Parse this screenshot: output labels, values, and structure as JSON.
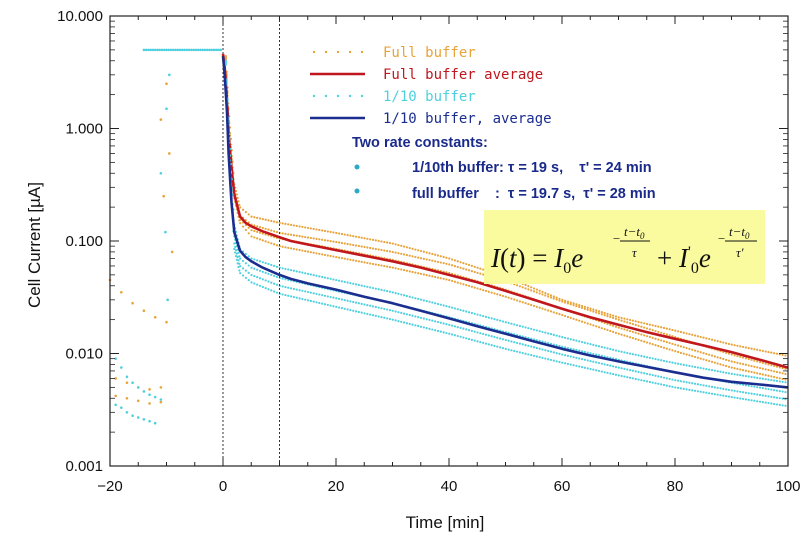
{
  "chart_data": {
    "type": "line",
    "title": "",
    "xlabel": "Time [min]",
    "ylabel": "Cell Current [µA]",
    "xlim": [
      -20,
      100
    ],
    "ylim": [
      0.001,
      10
    ],
    "yscale": "log",
    "x_ticks": [
      -20,
      0,
      20,
      40,
      60,
      80,
      100
    ],
    "x_tick_labels": [
      "−20",
      "0",
      "20",
      "40",
      "60",
      "80",
      "100"
    ],
    "y_ticks": [
      0.001,
      0.01,
      0.1,
      1,
      10
    ],
    "y_tick_labels": [
      "0.001",
      "0.010",
      "0.100",
      "1.000",
      "10.000"
    ],
    "vlines": [
      0,
      10
    ],
    "grid": false,
    "legend_position": "top-right",
    "series": [
      {
        "name": "Full buffer",
        "style": "dots",
        "color": "#e8a33a",
        "points": [
          [
            -20,
            0.045
          ],
          [
            -18,
            0.035
          ],
          [
            -16,
            0.028
          ],
          [
            -14,
            0.024
          ],
          [
            -12,
            0.021
          ],
          [
            -10,
            0.019
          ],
          [
            -19,
            0.006
          ],
          [
            -17,
            0.0055
          ],
          [
            -15,
            0.005
          ],
          [
            -13,
            0.0048
          ],
          [
            -11,
            0.005
          ],
          [
            -19,
            0.0042
          ],
          [
            -17,
            0.004
          ],
          [
            -15,
            0.0038
          ],
          [
            -13,
            0.0036
          ],
          [
            -11,
            0.0037
          ],
          [
            -10,
            2.5
          ],
          [
            -9.5,
            0.6
          ],
          [
            -11,
            1.2
          ],
          [
            -10.5,
            0.25
          ],
          [
            -9,
            0.08
          ]
        ],
        "curves": [
          [
            [
              0.5,
              4.4
            ],
            [
              1,
              1.5
            ],
            [
              2,
              0.32
            ],
            [
              3,
              0.2
            ],
            [
              5,
              0.165
            ],
            [
              10,
              0.145
            ],
            [
              20,
              0.118
            ],
            [
              30,
              0.095
            ],
            [
              40,
              0.07
            ],
            [
              50,
              0.048
            ],
            [
              60,
              0.03
            ],
            [
              70,
              0.021
            ],
            [
              80,
              0.016
            ],
            [
              90,
              0.012
            ],
            [
              100,
              0.0095
            ]
          ],
          [
            [
              0.5,
              4.2
            ],
            [
              1,
              1.3
            ],
            [
              2,
              0.26
            ],
            [
              3,
              0.155
            ],
            [
              5,
              0.125
            ],
            [
              10,
              0.105
            ],
            [
              20,
              0.085
            ],
            [
              30,
              0.068
            ],
            [
              40,
              0.052
            ],
            [
              50,
              0.037
            ],
            [
              60,
              0.025
            ],
            [
              70,
              0.017
            ],
            [
              80,
              0.012
            ],
            [
              90,
              0.0085
            ],
            [
              100,
              0.0065
            ]
          ],
          [
            [
              0.5,
              4.3
            ],
            [
              1,
              1.35
            ],
            [
              2,
              0.28
            ],
            [
              3,
              0.17
            ],
            [
              5,
              0.14
            ],
            [
              10,
              0.118
            ],
            [
              20,
              0.098
            ],
            [
              30,
              0.08
            ],
            [
              40,
              0.062
            ],
            [
              50,
              0.044
            ],
            [
              60,
              0.029
            ],
            [
              70,
              0.02
            ],
            [
              80,
              0.014
            ],
            [
              90,
              0.0098
            ],
            [
              100,
              0.0072
            ]
          ],
          [
            [
              0.5,
              4.1
            ],
            [
              1,
              1.2
            ],
            [
              2,
              0.24
            ],
            [
              3,
              0.145
            ],
            [
              5,
              0.11
            ],
            [
              10,
              0.09
            ],
            [
              20,
              0.072
            ],
            [
              30,
              0.058
            ],
            [
              40,
              0.045
            ],
            [
              50,
              0.032
            ],
            [
              60,
              0.022
            ],
            [
              70,
              0.015
            ],
            [
              80,
              0.0105
            ],
            [
              90,
              0.0075
            ],
            [
              100,
              0.0058
            ]
          ]
        ]
      },
      {
        "name": "Full buffer average",
        "style": "line",
        "color": "#c0161d",
        "x": [
          0,
          0.3,
          0.7,
          1,
          1.5,
          2,
          3,
          4,
          5,
          7,
          10,
          12,
          15,
          20,
          25,
          30,
          35,
          40,
          45,
          50,
          55,
          60,
          65,
          70,
          75,
          80,
          85,
          90,
          95,
          100
        ],
        "y": [
          4.6,
          3.5,
          1.8,
          0.9,
          0.45,
          0.26,
          0.165,
          0.145,
          0.135,
          0.122,
          0.108,
          0.1,
          0.093,
          0.083,
          0.074,
          0.066,
          0.058,
          0.05,
          0.043,
          0.036,
          0.03,
          0.025,
          0.021,
          0.018,
          0.0155,
          0.0135,
          0.0118,
          0.0103,
          0.0088,
          0.0075
        ]
      },
      {
        "name": "1/10 buffer",
        "style": "dots",
        "color": "#4fd0de",
        "points": [
          [
            -19,
            0.009
          ],
          [
            -18,
            0.0075
          ],
          [
            -17,
            0.0062
          ],
          [
            -16,
            0.0055
          ],
          [
            -15,
            0.005
          ],
          [
            -14,
            0.0046
          ],
          [
            -13,
            0.0043
          ],
          [
            -12,
            0.0041
          ],
          [
            -11,
            0.0039
          ],
          [
            -19,
            0.0035
          ],
          [
            -18,
            0.0033
          ],
          [
            -17,
            0.003
          ],
          [
            -16,
            0.0028
          ],
          [
            -15,
            0.0027
          ],
          [
            -14,
            0.0026
          ],
          [
            -13,
            0.0025
          ],
          [
            -12,
            0.0024
          ],
          [
            -10,
            1.5
          ],
          [
            -9.5,
            3.0
          ],
          [
            -11,
            0.4
          ],
          [
            -10.2,
            0.12
          ],
          [
            -9.8,
            0.03
          ]
        ],
        "flat": {
          "x": [
            -14,
            0
          ],
          "y": 5.0
        },
        "curves": [
          [
            [
              0.5,
              4.0
            ],
            [
              1,
              1.1
            ],
            [
              2,
              0.14
            ],
            [
              3,
              0.085
            ],
            [
              5,
              0.07
            ],
            [
              10,
              0.058
            ],
            [
              20,
              0.045
            ],
            [
              30,
              0.035
            ],
            [
              40,
              0.026
            ],
            [
              50,
              0.019
            ],
            [
              60,
              0.014
            ],
            [
              70,
              0.0105
            ],
            [
              80,
              0.0082
            ],
            [
              90,
              0.0066
            ],
            [
              100,
              0.0055
            ]
          ],
          [
            [
              0.5,
              3.8
            ],
            [
              1,
              1.0
            ],
            [
              2,
              0.11
            ],
            [
              3,
              0.07
            ],
            [
              5,
              0.058
            ],
            [
              10,
              0.047
            ],
            [
              20,
              0.036
            ],
            [
              30,
              0.028
            ],
            [
              40,
              0.021
            ],
            [
              50,
              0.0155
            ],
            [
              60,
              0.0115
            ],
            [
              70,
              0.0088
            ],
            [
              80,
              0.0068
            ],
            [
              90,
              0.0055
            ],
            [
              100,
              0.0045
            ]
          ],
          [
            [
              0.5,
              3.9
            ],
            [
              1,
              1.05
            ],
            [
              2,
              0.095
            ],
            [
              3,
              0.06
            ],
            [
              5,
              0.05
            ],
            [
              10,
              0.04
            ],
            [
              20,
              0.031
            ],
            [
              30,
              0.024
            ],
            [
              40,
              0.018
            ],
            [
              50,
              0.0132
            ],
            [
              60,
              0.0098
            ],
            [
              70,
              0.0075
            ],
            [
              80,
              0.0058
            ],
            [
              90,
              0.0047
            ],
            [
              100,
              0.0039
            ]
          ],
          [
            [
              0.5,
              3.7
            ],
            [
              1,
              0.95
            ],
            [
              2,
              0.085
            ],
            [
              3,
              0.052
            ],
            [
              5,
              0.043
            ],
            [
              10,
              0.034
            ],
            [
              20,
              0.026
            ],
            [
              30,
              0.02
            ],
            [
              40,
              0.015
            ],
            [
              50,
              0.011
            ],
            [
              60,
              0.0083
            ],
            [
              70,
              0.0064
            ],
            [
              80,
              0.005
            ],
            [
              90,
              0.0041
            ],
            [
              100,
              0.0034
            ]
          ]
        ]
      },
      {
        "name": "1/10 buffer, average",
        "style": "line",
        "color": "#1b2e8f",
        "x": [
          0,
          0.3,
          0.7,
          1,
          1.5,
          2,
          3,
          4,
          5,
          7,
          10,
          12,
          15,
          20,
          25,
          30,
          35,
          40,
          45,
          50,
          55,
          60,
          65,
          70,
          75,
          80,
          85,
          90,
          95,
          100
        ],
        "y": [
          4.4,
          3.0,
          1.4,
          0.6,
          0.22,
          0.12,
          0.082,
          0.072,
          0.066,
          0.058,
          0.05,
          0.046,
          0.042,
          0.037,
          0.032,
          0.028,
          0.024,
          0.0205,
          0.0175,
          0.015,
          0.0128,
          0.011,
          0.0096,
          0.0085,
          0.0076,
          0.0068,
          0.0061,
          0.0056,
          0.0053,
          0.005
        ]
      }
    ],
    "annotations": {
      "note_title": "Two rate constants:",
      "note_line1": "1/10th buffer: τ = 19 s,    τ' = 24 min",
      "note_line2": "full buffer    :  τ = 19.7 s,  τ' = 28 min",
      "formula": "I(t) = I0 e^(-(t-t0)/τ) + I'0 e^(-(t-t0)/τ')"
    }
  },
  "legend": [
    {
      "label": "Full buffer",
      "color": "#e8a33a",
      "kind": "dots"
    },
    {
      "label": "Full buffer average",
      "color": "#c0161d",
      "kind": "line"
    },
    {
      "label": "1/10 buffer",
      "color": "#4fd0de",
      "kind": "dots"
    },
    {
      "label": "1/10 buffer, average",
      "color": "#1b2e8f",
      "kind": "line"
    }
  ],
  "formula_box_color": "#fafa9e"
}
